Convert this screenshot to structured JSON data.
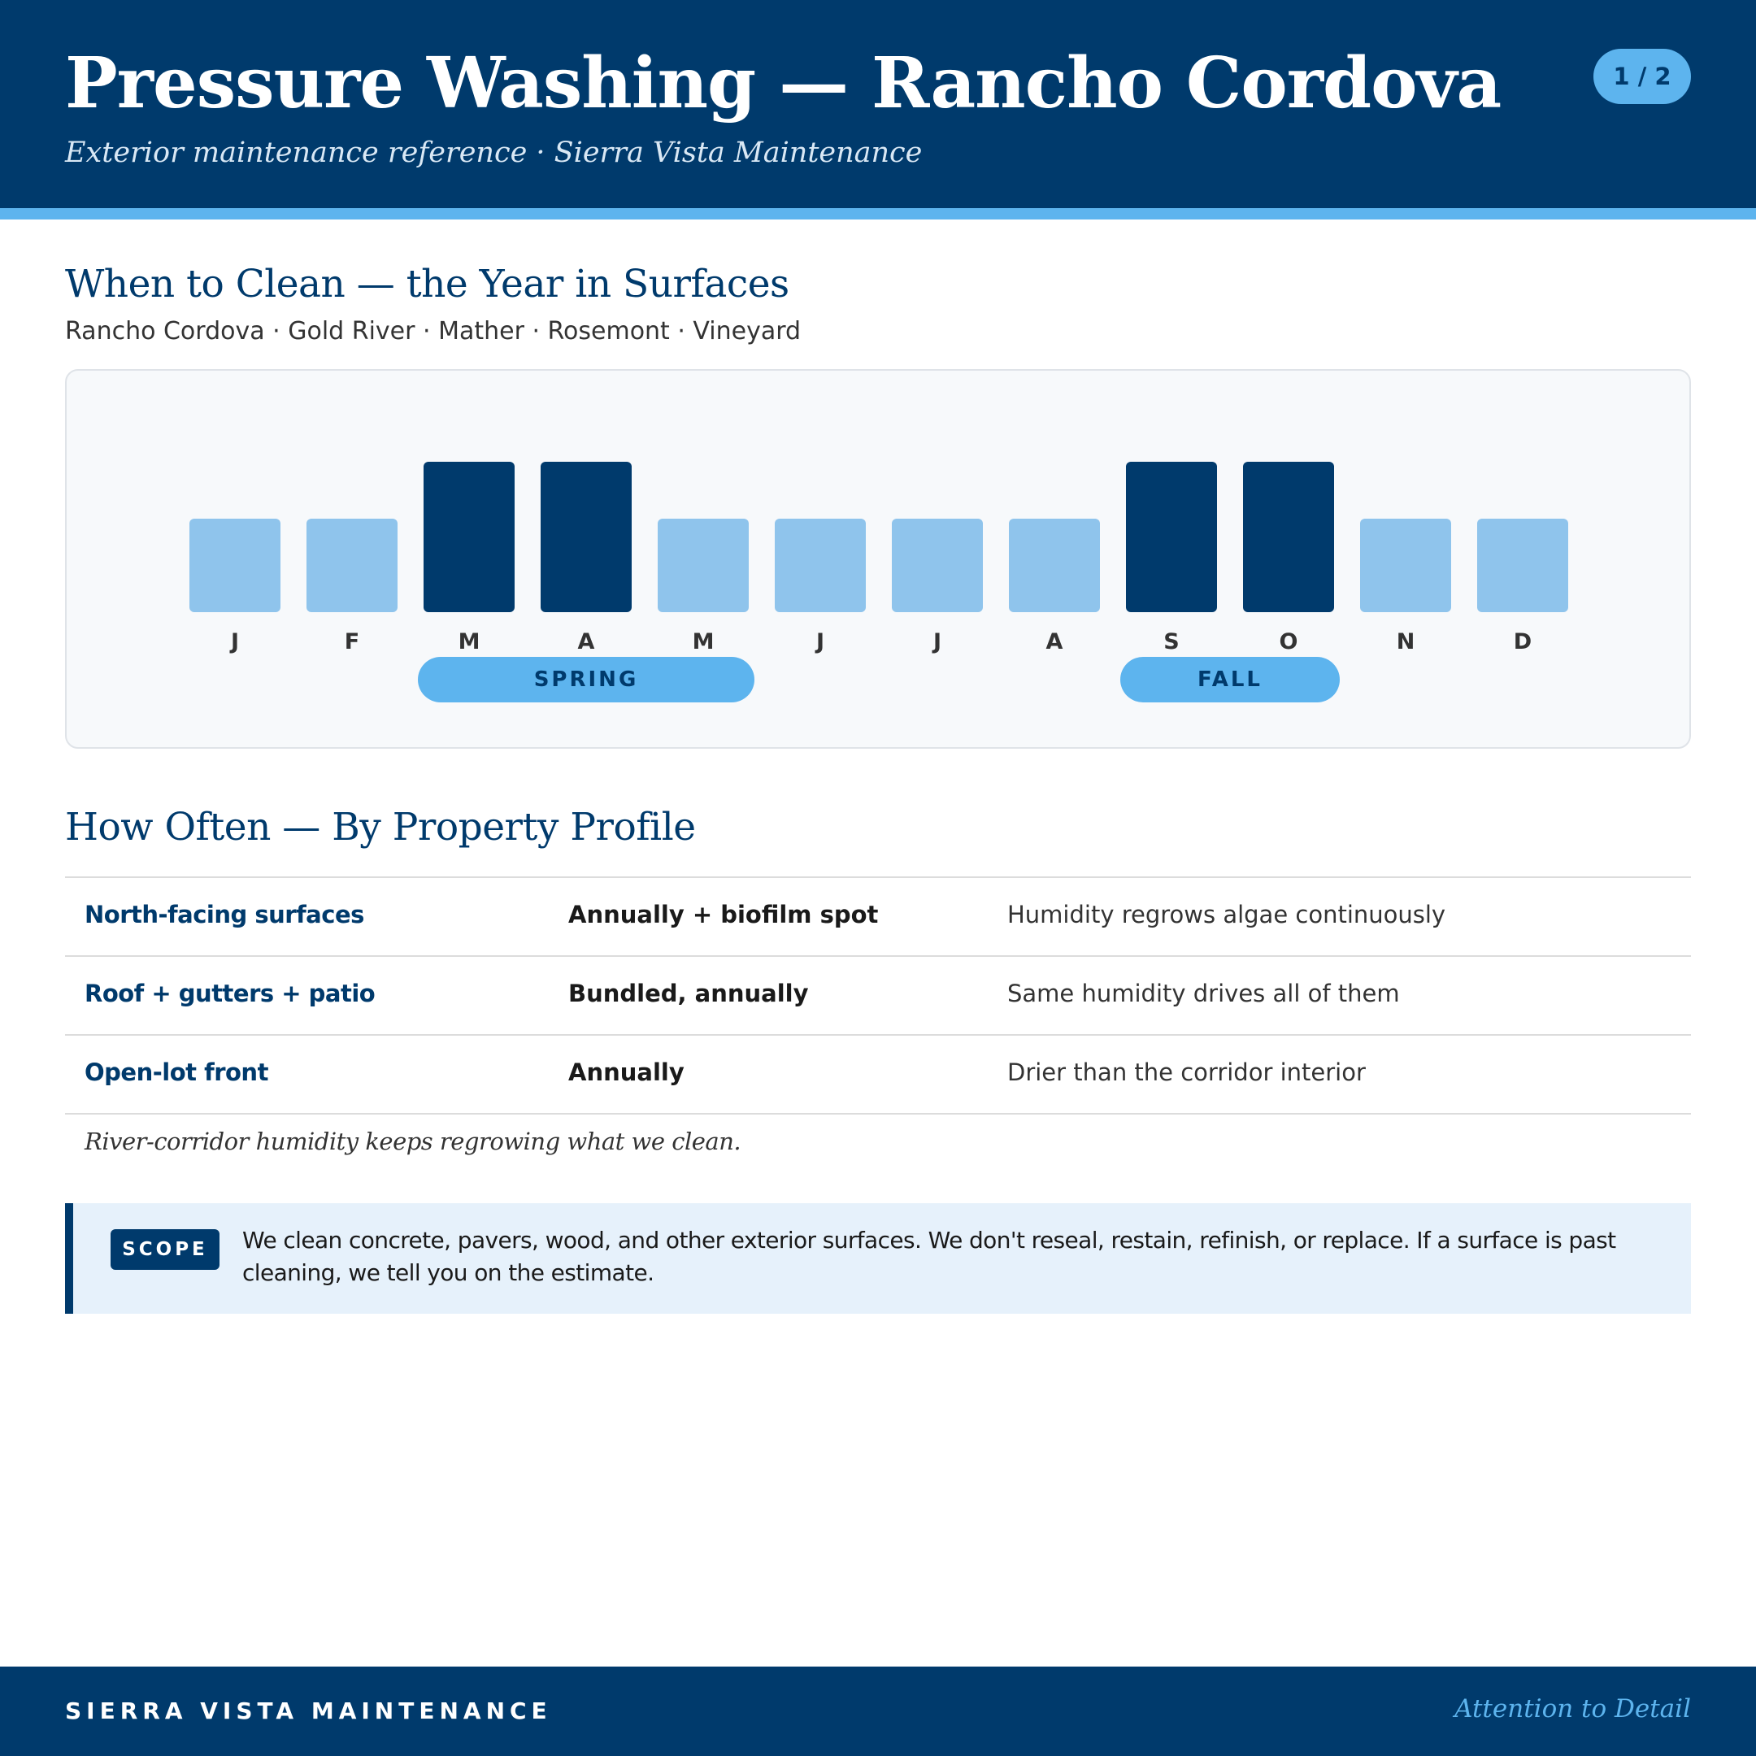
{
  "header": {
    "title": "Pressure Washing — Rancho Cordova",
    "subtitle": "Exterior maintenance reference · Sierra Vista Maintenance",
    "page_indicator": "1 / 2"
  },
  "when_section": {
    "heading": "When to Clean — the Year in Surfaces",
    "areas": "Rancho Cordova · Gold River · Mather · Rosemont · Vineyard"
  },
  "chart_data": {
    "type": "bar",
    "categories": [
      "J",
      "F",
      "M",
      "A",
      "M",
      "J",
      "J",
      "A",
      "S",
      "O",
      "N",
      "D"
    ],
    "values": [
      1,
      1,
      2,
      2,
      1,
      1,
      1,
      1,
      2,
      2,
      1,
      1
    ],
    "colors": {
      "peak": "#003a6c",
      "base": "#8fc4ec"
    },
    "seasons": [
      {
        "label": "SPRING",
        "start": 2,
        "end": 4
      },
      {
        "label": "FALL",
        "start": 8,
        "end": 9
      }
    ]
  },
  "frequency_section": {
    "heading": "How Often — By Property Profile",
    "rows": [
      {
        "profile": "North-facing surfaces",
        "frequency": "Annually + biofilm spot",
        "reason": "Humidity regrows algae continuously"
      },
      {
        "profile": "Roof + gutters + patio",
        "frequency": "Bundled, annually",
        "reason": "Same humidity drives all of them"
      },
      {
        "profile": "Open-lot front",
        "frequency": "Annually",
        "reason": "Drier than the corridor interior"
      }
    ],
    "note": "River-corridor humidity keeps regrowing what we clean."
  },
  "scope": {
    "tag": "SCOPE",
    "text": "We clean concrete, pavers, wood, and other exterior surfaces. We don't reseal, restain, refinish, or replace. If a surface is past cleaning, we tell you on the estimate."
  },
  "footer": {
    "brand": "SIERRA VISTA MAINTENANCE",
    "tagline": "Attention to Detail"
  },
  "colors": {
    "navy": "#003a6c",
    "accent": "#5db4ee",
    "light_bar": "#8fc4ec",
    "scope_bg": "#e6f1fb"
  }
}
